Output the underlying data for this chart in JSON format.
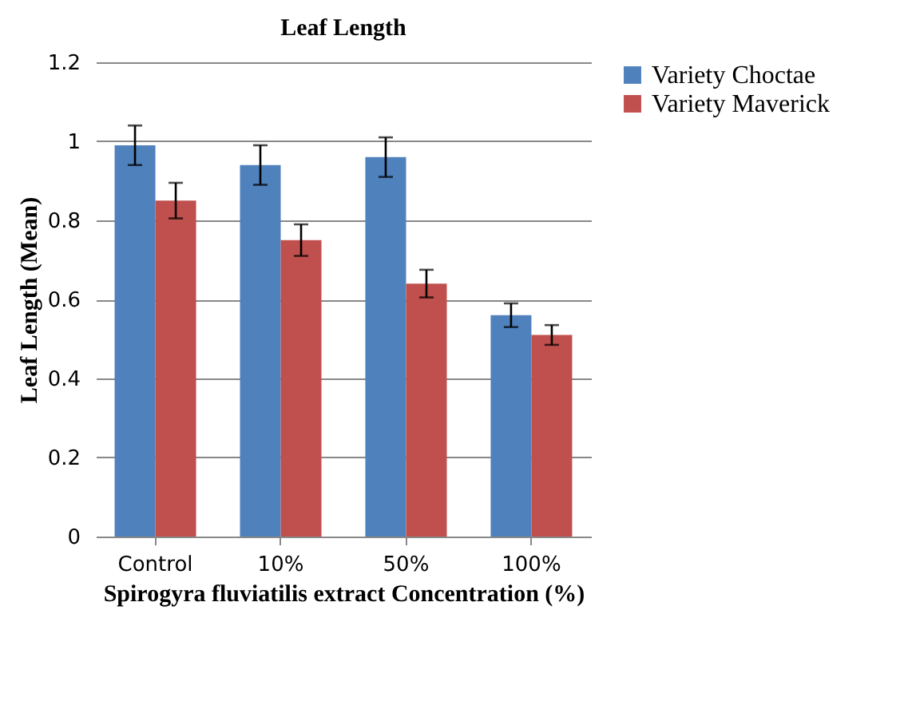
{
  "chart_data": {
    "type": "bar",
    "title": "Leaf Length",
    "xlabel": "Spirogyra fluviatilis extract Concentration (%)",
    "ylabel": "Leaf Length (Mean)",
    "categories": [
      "Control",
      "10%",
      "50%",
      "100%"
    ],
    "series": [
      {
        "name": "Variety Choctae",
        "color": "#4f81bd",
        "values": [
          0.99,
          0.94,
          0.96,
          0.56
        ],
        "errors": [
          0.05,
          0.05,
          0.05,
          0.03
        ]
      },
      {
        "name": "Variety Maverick",
        "color": "#c0504d",
        "values": [
          0.85,
          0.75,
          0.64,
          0.51
        ],
        "errors": [
          0.045,
          0.04,
          0.035,
          0.025
        ]
      }
    ],
    "ylim": [
      0,
      1.2
    ],
    "yticks": [
      0,
      0.2,
      0.4,
      0.6,
      0.8,
      1,
      1.2
    ],
    "grid": "y",
    "legend": "right"
  }
}
